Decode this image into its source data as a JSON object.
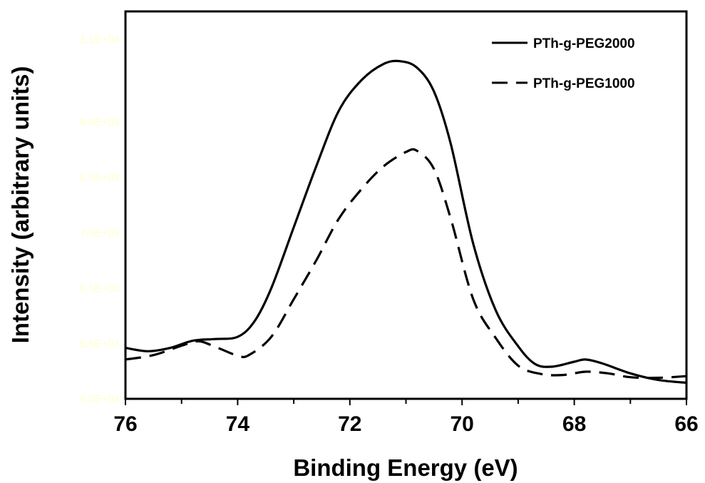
{
  "chart_data": {
    "type": "line",
    "xlabel": "Binding Energy (eV)",
    "ylabel": "Intensity (arbitrary units)",
    "xlim": [
      76,
      66
    ],
    "x_reversed": true,
    "ylim": [
      4500,
      11500
    ],
    "x_ticks": [
      76,
      74,
      72,
      70,
      68,
      66
    ],
    "x_tick_labels": [
      "76",
      "74",
      "72",
      "70",
      "68",
      "66"
    ],
    "y_ticks": [
      4500,
      5500,
      6500,
      7500,
      8500,
      9500,
      11000
    ],
    "y_tick_labels": [
      "4.5E+03",
      "5.5E+03",
      "6.5E+03",
      "7.5E+03",
      "8.5E+03",
      "9.5E+03",
      "1.1E+04"
    ],
    "y_tick_label_color": "#ffffcc",
    "grid": false,
    "legend_position": "top-right",
    "series": [
      {
        "name": "PTh-g-PEG2000",
        "style": "solid",
        "color": "#000000",
        "x": [
          76.0,
          75.6,
          75.2,
          74.8,
          74.4,
          74.0,
          73.7,
          73.4,
          73.0,
          72.6,
          72.2,
          71.8,
          71.4,
          71.1,
          70.8,
          70.5,
          70.2,
          69.8,
          69.4,
          69.0,
          68.7,
          68.4,
          68.0,
          67.8,
          67.5,
          67.0,
          66.5,
          66.0
        ],
        "y": [
          5420,
          5360,
          5420,
          5550,
          5580,
          5620,
          5900,
          6500,
          7600,
          8700,
          9700,
          10250,
          10550,
          10600,
          10480,
          10050,
          9100,
          7300,
          6100,
          5450,
          5130,
          5080,
          5170,
          5210,
          5140,
          4960,
          4840,
          4790
        ]
      },
      {
        "name": "PTh-g-PEG1000",
        "style": "dashed",
        "color": "#000000",
        "x": [
          76.0,
          75.5,
          75.0,
          74.7,
          74.4,
          74.0,
          73.8,
          73.4,
          73.0,
          72.6,
          72.2,
          71.8,
          71.4,
          71.0,
          70.8,
          70.5,
          70.2,
          69.8,
          69.4,
          69.0,
          68.6,
          68.2,
          67.8,
          67.4,
          67.0,
          66.5,
          66.0
        ],
        "y": [
          5210,
          5290,
          5460,
          5540,
          5440,
          5280,
          5290,
          5620,
          6300,
          7000,
          7750,
          8280,
          8700,
          8960,
          8980,
          8650,
          7750,
          6300,
          5600,
          5100,
          4950,
          4930,
          4990,
          4960,
          4890,
          4880,
          4910
        ]
      }
    ]
  }
}
